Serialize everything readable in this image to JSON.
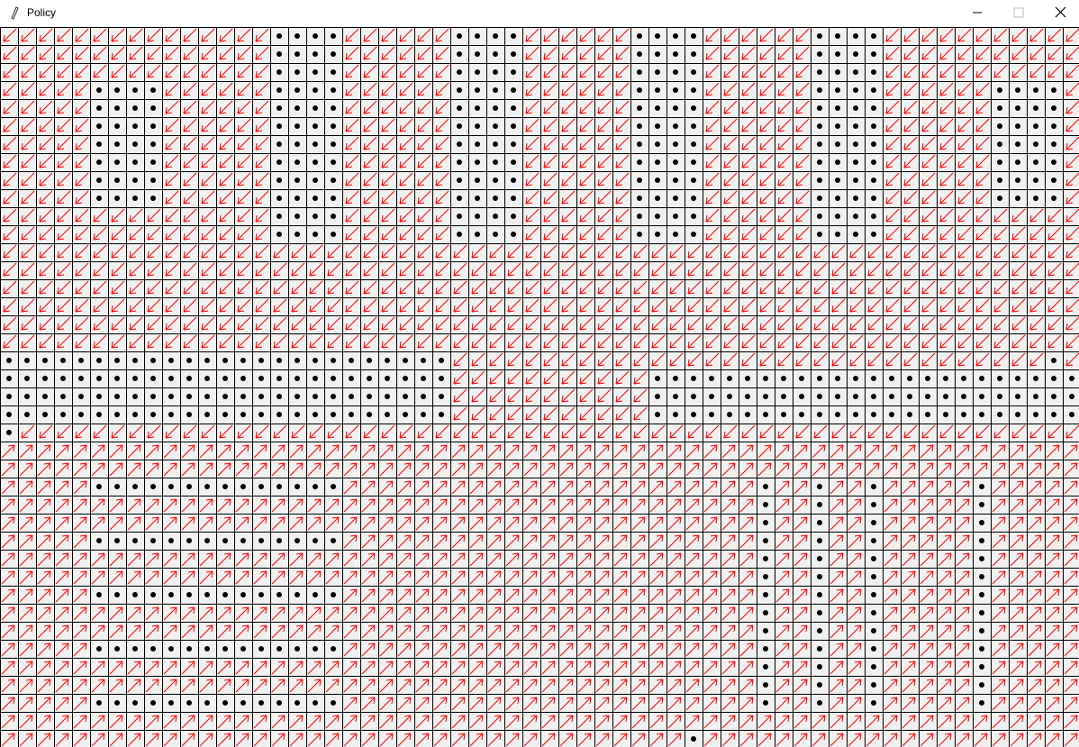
{
  "window": {
    "title": "Policy"
  }
}
